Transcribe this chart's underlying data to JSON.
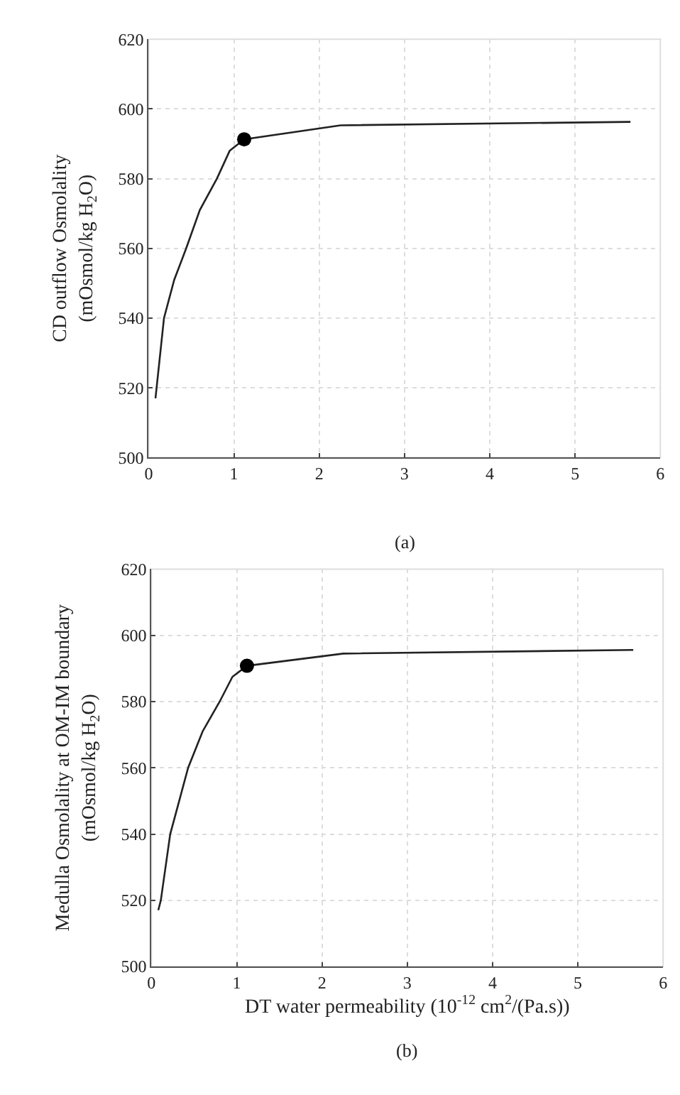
{
  "chart_data": [
    {
      "type": "line",
      "ylabel": "CD outflow Osmolality\n(mOsmol/kg H$_{2}$O)",
      "xlim": [
        0,
        6
      ],
      "xticks": [
        0,
        1,
        2,
        3,
        4,
        5,
        6
      ],
      "ylim": [
        500,
        620
      ],
      "yticks": [
        500,
        520,
        540,
        560,
        580,
        600,
        620
      ],
      "grid": true,
      "annotations": [
        "(a)"
      ],
      "series": [
        {
          "color": "#222222",
          "marker": "none",
          "x": [
            0.08,
            0.18,
            0.3,
            0.44,
            0.6,
            0.8,
            0.95,
            1.12,
            2.25,
            5.65
          ],
          "values": [
            517,
            540,
            551,
            560,
            571,
            580,
            588,
            591.3,
            595.3,
            596.3
          ]
        },
        {
          "type": "scatter",
          "color": "#000000",
          "marker": "circle",
          "x": [
            1.12
          ],
          "values": [
            591.3
          ]
        }
      ]
    },
    {
      "type": "line",
      "ylabel": "Medulla Osmolality at OM-IM boundary\n(mOsmol/kg H$_{2}$O)",
      "xlabel": "DT water permeability (10$^{-12}$ cm$^{2}$/(Pa.s))",
      "xlim": [
        0,
        6
      ],
      "xticks": [
        0,
        1,
        2,
        3,
        4,
        5,
        6
      ],
      "ylim": [
        500,
        620
      ],
      "yticks": [
        500,
        520,
        540,
        560,
        580,
        600,
        620
      ],
      "grid": true,
      "annotations": [
        "(b)"
      ],
      "series": [
        {
          "color": "#222222",
          "marker": "none",
          "x": [
            0.08,
            0.11,
            0.22,
            0.43,
            0.6,
            0.8,
            0.95,
            1.12,
            2.25,
            5.65
          ],
          "values": [
            517,
            520,
            540,
            560,
            571,
            580,
            587.5,
            590.8,
            594.5,
            595.6
          ]
        },
        {
          "type": "scatter",
          "color": "#000000",
          "marker": "circle",
          "x": [
            1.12
          ],
          "values": [
            590.8
          ]
        }
      ]
    }
  ]
}
